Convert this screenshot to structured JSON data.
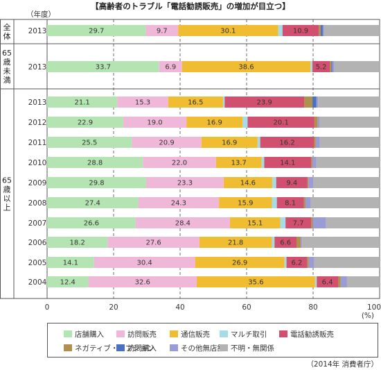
{
  "chart_data": {
    "type": "bar",
    "orientation": "horizontal",
    "stacked": true,
    "title": "【高齢者のトラブル「電話勧誘販売」の増加が目立つ】",
    "year_header": "（年度）",
    "xlim": [
      0,
      100
    ],
    "x_ticks": [
      "0",
      "20",
      "40",
      "60",
      "80",
      "100"
    ],
    "x_unit": "(%)",
    "grid": "dashed vertical",
    "legend_position": "bottom",
    "source": "（2014年 消費者庁）",
    "groups": [
      {
        "name": "全体",
        "label_chars": [
          "全",
          "体"
        ]
      },
      {
        "name": "65歳未満",
        "label_chars": [
          "65",
          "歳",
          "未",
          "満"
        ]
      },
      {
        "name": "65歳以上",
        "label_chars": [
          "65",
          "歳",
          "以",
          "上"
        ]
      }
    ],
    "series": [
      {
        "name": "店舗購入",
        "color": "#b5e4b3"
      },
      {
        "name": "訪問販売",
        "color": "#f0b8d8"
      },
      {
        "name": "通信販売",
        "color": "#f0bc32"
      },
      {
        "name": "マルチ取引",
        "color": "#a7dbe6"
      },
      {
        "name": "電話勧誘販売",
        "color": "#d1506f"
      },
      {
        "name": "ネガティブ・オプション",
        "color": "#b0904e"
      },
      {
        "name": "訪問購入",
        "color": "#4a70c0"
      },
      {
        "name": "その他無店舗",
        "color": "#9a9cd6"
      },
      {
        "name": "不明・無関係",
        "color": "#b3b3b3"
      }
    ],
    "rows": [
      {
        "group": "全体",
        "category": "2013",
        "values": [
          29.7,
          9.7,
          30.1,
          1.3,
          10.9,
          0.6,
          0.6,
          0.5,
          16.6
        ],
        "labels": [
          "29.7",
          "9.7",
          "30.1",
          "",
          "10.9",
          "",
          "",
          "",
          ""
        ]
      },
      {
        "group": "65歳未満",
        "category": "2013",
        "values": [
          33.7,
          6.9,
          38.6,
          0.6,
          5.2,
          0.5,
          0.3,
          0.6,
          13.6
        ],
        "labels": [
          "33.7",
          "6.9",
          "38.6",
          "",
          "5.2",
          "",
          "",
          "",
          ""
        ]
      },
      {
        "group": "65歳以上",
        "category": "2013",
        "values": [
          21.1,
          15.3,
          16.5,
          0.5,
          23.9,
          2.5,
          1.2,
          0.5,
          18.5
        ],
        "labels": [
          "21.1",
          "15.3",
          "16.5",
          "",
          "23.9",
          "",
          "",
          "",
          ""
        ]
      },
      {
        "group": "65歳以上",
        "category": "2012",
        "values": [
          22.9,
          19.0,
          16.9,
          1.5,
          20.1,
          1.0,
          0.0,
          0.6,
          18.0
        ],
        "labels": [
          "22.9",
          "19.0",
          "16.9",
          "",
          "20.1",
          "",
          "",
          "",
          ""
        ]
      },
      {
        "group": "65歳以上",
        "category": "2011",
        "values": [
          25.5,
          20.9,
          16.9,
          0.8,
          16.2,
          0.5,
          0.0,
          1.2,
          18.0
        ],
        "labels": [
          "25.5",
          "20.9",
          "16.9",
          "",
          "16.2",
          "",
          "",
          "",
          ""
        ]
      },
      {
        "group": "65歳以上",
        "category": "2010",
        "values": [
          28.8,
          22.0,
          13.7,
          0.8,
          14.1,
          0.4,
          0.0,
          1.2,
          19.0
        ],
        "labels": [
          "28.8",
          "22.0",
          "13.7",
          "",
          "14.1",
          "",
          "",
          "",
          ""
        ]
      },
      {
        "group": "65歳以上",
        "category": "2009",
        "values": [
          29.8,
          23.3,
          14.6,
          1.2,
          9.4,
          0.3,
          0.0,
          1.4,
          20.0
        ],
        "labels": [
          "29.8",
          "23.3",
          "14.6",
          "",
          "9.4",
          "",
          "",
          "",
          ""
        ]
      },
      {
        "group": "65歳以上",
        "category": "2008",
        "values": [
          27.4,
          24.3,
          15.9,
          1.5,
          8.1,
          0.5,
          0.0,
          1.6,
          20.7
        ],
        "labels": [
          "27.4",
          "24.3",
          "15.9",
          "",
          "8.1",
          "",
          "",
          "",
          ""
        ]
      },
      {
        "group": "65歳以上",
        "category": "2007",
        "values": [
          26.6,
          28.4,
          15.1,
          1.6,
          7.7,
          0.5,
          0.0,
          4.0,
          16.1
        ],
        "labels": [
          "26.6",
          "28.4",
          "15.1",
          "",
          "7.7",
          "",
          "",
          "",
          ""
        ]
      },
      {
        "group": "65歳以上",
        "category": "2006",
        "values": [
          18.2,
          27.6,
          21.8,
          0.8,
          6.6,
          1.3,
          0.0,
          0.4,
          23.3
        ],
        "labels": [
          "18.2",
          "27.6",
          "21.8",
          "",
          "6.6",
          "",
          "",
          "",
          ""
        ]
      },
      {
        "group": "65歳以上",
        "category": "2005",
        "values": [
          14.1,
          30.4,
          26.9,
          0.6,
          6.2,
          0.5,
          0.0,
          1.6,
          19.7
        ],
        "labels": [
          "14.1",
          "30.4",
          "26.9",
          "",
          "6.2",
          "",
          "",
          "",
          ""
        ]
      },
      {
        "group": "65歳以上",
        "category": "2004",
        "values": [
          12.4,
          32.6,
          35.6,
          0.5,
          6.4,
          0.8,
          0.0,
          1.9,
          9.8
        ],
        "labels": [
          "12.4",
          "32.6",
          "35.6",
          "",
          "6.4",
          "",
          "",
          "",
          ""
        ]
      }
    ]
  }
}
